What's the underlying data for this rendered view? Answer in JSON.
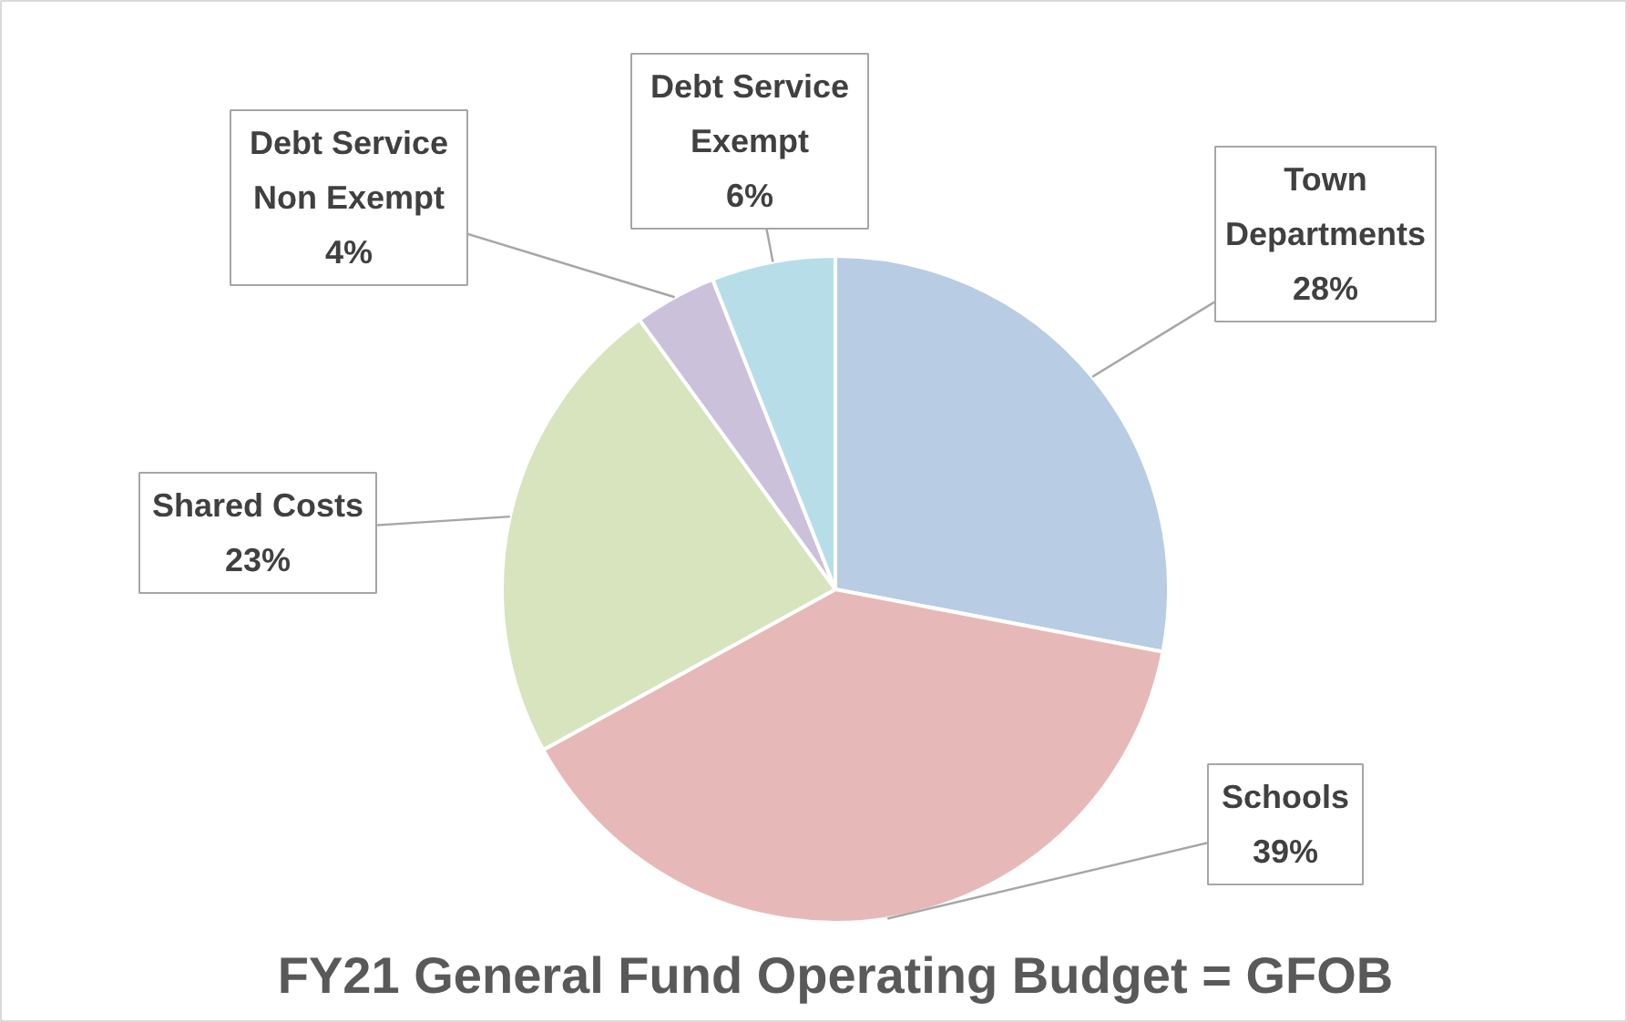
{
  "chart_data": {
    "type": "pie",
    "title": "FY21 General Fund Operating Budget = GFOB",
    "categories": [
      "Town Departments",
      "Schools",
      "Shared Costs",
      "Debt Service Non Exempt",
      "Debt Service Exempt"
    ],
    "values": [
      28,
      39,
      23,
      4,
      6
    ],
    "value_labels": [
      "28%",
      "39%",
      "23%",
      "4%",
      "6%"
    ],
    "colors": [
      "#b8cce4",
      "#e6b9b8",
      "#d7e4bd",
      "#ccc1da",
      "#b7dee8"
    ]
  }
}
